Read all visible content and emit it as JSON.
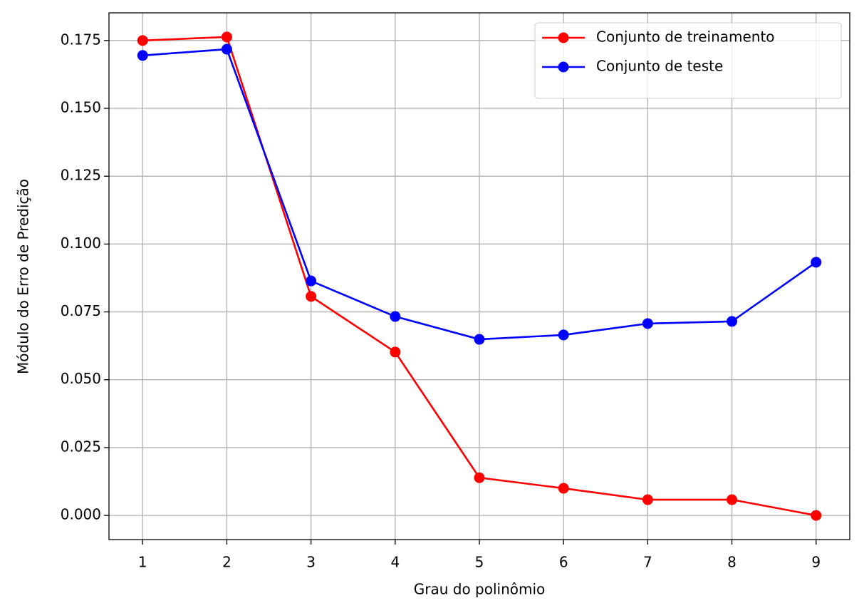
{
  "chart_data": {
    "type": "line",
    "x_label": "Grau do polinômio",
    "y_label": "Módulo do Erro de Predição",
    "x": [
      1,
      2,
      3,
      4,
      5,
      6,
      7,
      8,
      9
    ],
    "series": [
      {
        "name": "Conjunto de treinamento",
        "color": "#ff0000",
        "values": [
          0.175,
          0.1763,
          0.0807,
          0.0602,
          0.0139,
          0.01,
          0.0058,
          0.0058,
          0.0
        ]
      },
      {
        "name": "Conjunto de teste",
        "color": "#0000ff",
        "values": [
          0.1695,
          0.1718,
          0.0864,
          0.0733,
          0.0649,
          0.0665,
          0.0707,
          0.0715,
          0.0933
        ]
      }
    ],
    "xlim": [
      0.6,
      9.4
    ],
    "ylim": [
      -0.0089,
      0.1852
    ],
    "xticks": [
      1,
      2,
      3,
      4,
      5,
      6,
      7,
      8,
      9
    ],
    "yticks": [
      {
        "value": 0,
        "label": "0.000"
      },
      {
        "value": 0.025,
        "label": "0.025"
      },
      {
        "value": 0.05,
        "label": "0.050"
      },
      {
        "value": 0.075,
        "label": "0.075"
      },
      {
        "value": 0.1,
        "label": "0.100"
      },
      {
        "value": 0.125,
        "label": "0.125"
      },
      {
        "value": 0.15,
        "label": "0.150"
      },
      {
        "value": 0.175,
        "label": "0.175"
      }
    ],
    "grid": true,
    "legend": "upper-right"
  }
}
